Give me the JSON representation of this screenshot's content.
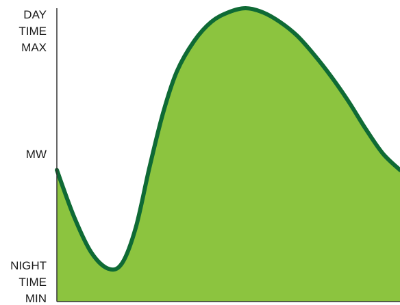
{
  "chart_data": {
    "type": "area",
    "title": "",
    "xlabel": "",
    "ylabel": "MW",
    "y_tick_labels": [
      {
        "lines": [
          "DAY",
          "TIME",
          "MAX"
        ],
        "level": "max"
      },
      {
        "lines": [
          "MW"
        ],
        "level": "mid"
      },
      {
        "lines": [
          "NIGHT",
          "TIME",
          "MIN"
        ],
        "level": "min"
      }
    ],
    "ylim": [
      0,
      1
    ],
    "xlim": [
      0,
      1
    ],
    "grid": false,
    "legend": "none",
    "series": [
      {
        "x": [
          0.0,
          0.05,
          0.1,
          0.15,
          0.19,
          0.23,
          0.27,
          0.31,
          0.35,
          0.4,
          0.45,
          0.5,
          0.55,
          0.6,
          0.65,
          0.7,
          0.75,
          0.8,
          0.85,
          0.9,
          0.95,
          1.0
        ],
        "values": [
          0.41,
          0.24,
          0.11,
          0.05,
          0.07,
          0.2,
          0.42,
          0.62,
          0.77,
          0.88,
          0.95,
          0.985,
          1.0,
          0.985,
          0.95,
          0.9,
          0.83,
          0.75,
          0.66,
          0.56,
          0.47,
          0.41
        ]
      }
    ],
    "colors": {
      "fill": "#8cc43f",
      "line": "#0f6a35",
      "axis": "#333333",
      "label": "#1a1a1a"
    }
  }
}
